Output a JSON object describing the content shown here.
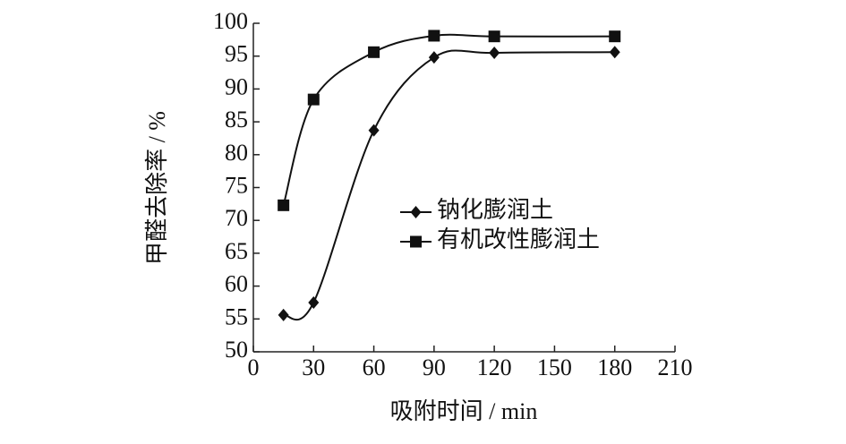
{
  "chart_data": {
    "type": "line",
    "xlabel": "吸附时间 / min",
    "ylabel": "甲醛去除率 / %",
    "x": [
      15,
      30,
      60,
      90,
      120,
      180
    ],
    "series": [
      {
        "name": "钠化膨润土",
        "color": "#111111",
        "marker": "diamond",
        "values": [
          55.6,
          57.5,
          83.7,
          94.8,
          95.5,
          95.6
        ]
      },
      {
        "name": "有机改性膨润土",
        "color": "#111111",
        "marker": "square",
        "values": [
          72.3,
          88.4,
          95.6,
          98.1,
          98.0,
          98.0
        ]
      }
    ],
    "xlim": [
      0,
      210
    ],
    "xticks": [
      0,
      30,
      60,
      90,
      120,
      150,
      180,
      210
    ],
    "ylim": [
      50,
      100
    ],
    "yticks": [
      50,
      55,
      60,
      65,
      70,
      75,
      80,
      85,
      90,
      95,
      100
    ],
    "smooth": true
  }
}
